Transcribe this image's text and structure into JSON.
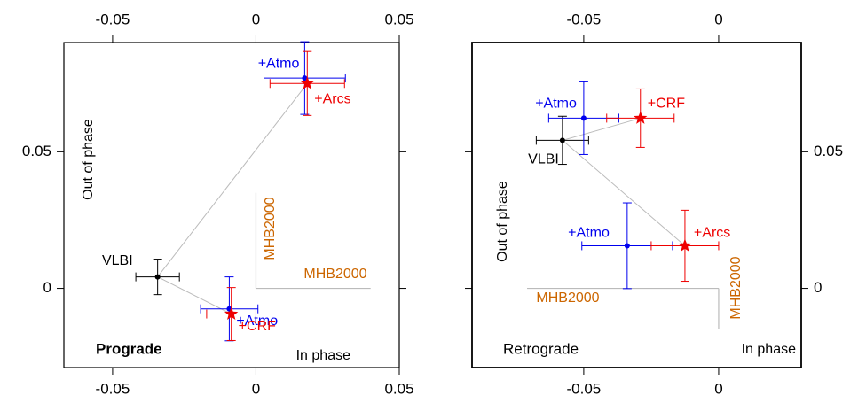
{
  "chart_data": [
    {
      "type": "scatter",
      "panel_label": "Prograde",
      "xlabel": "In phase",
      "ylabel": "Out of phase",
      "reference_label": "MHB2000",
      "xlim": [
        -0.067,
        0.05
      ],
      "ylim": [
        -0.029,
        0.09
      ],
      "xticks": [
        -0.05,
        0.0,
        0.05
      ],
      "yticks": [
        0.0,
        0.05
      ],
      "ytick_side": "left",
      "series": [
        {
          "name": "VLBI",
          "color": "#000000",
          "marker": "dot",
          "x": [
            -0.0343
          ],
          "values": [
            0.0042
          ],
          "xerr": [
            0.0076
          ],
          "yerr": [
            0.0065
          ]
        },
        {
          "name": "+Atmo",
          "color": "#0000ee",
          "marker": "dot",
          "x": [
            -0.0093
          ],
          "values": [
            -0.0075
          ],
          "xerr": [
            0.01
          ],
          "yerr": [
            0.0117
          ]
        },
        {
          "name": "+CRF",
          "color": "#ee0000",
          "marker": "star",
          "x": [
            -0.0086
          ],
          "values": [
            -0.0094
          ],
          "xerr": [
            0.0086
          ],
          "yerr": [
            0.0097
          ]
        },
        {
          "name": "+Atmo",
          "color": "#0000ee",
          "marker": "dot",
          "x": [
            0.017
          ],
          "values": [
            0.077
          ],
          "xerr": [
            0.0142
          ],
          "yerr": [
            0.0133
          ]
        },
        {
          "name": "+Arcs",
          "color": "#ee0000",
          "marker": "star",
          "x": [
            0.0179
          ],
          "values": [
            0.075
          ],
          "xerr": [
            0.013
          ],
          "yerr": [
            0.0117
          ]
        }
      ]
    },
    {
      "type": "scatter",
      "panel_label": "Retrograde",
      "xlabel": "In phase",
      "ylabel": "Out of phase",
      "reference_label": "MHB2000",
      "xlim": [
        -0.0914,
        0.0306
      ],
      "ylim": [
        -0.029,
        0.09
      ],
      "xticks": [
        -0.05,
        0.0
      ],
      "yticks": [
        0.0,
        0.05
      ],
      "ytick_side": "right",
      "series": [
        {
          "name": "VLBI",
          "color": "#000000",
          "marker": "dot",
          "x": [
            -0.0579
          ],
          "values": [
            0.0542
          ],
          "xerr": [
            0.0097
          ],
          "yerr": [
            0.0088
          ]
        },
        {
          "name": "+Atmo",
          "color": "#0000ee",
          "marker": "dot",
          "x": [
            -0.05
          ],
          "values": [
            0.0623
          ],
          "xerr": [
            0.013
          ],
          "yerr": [
            0.0133
          ]
        },
        {
          "name": "+CRF",
          "color": "#ee0000",
          "marker": "star",
          "x": [
            -0.029
          ],
          "values": [
            0.0623
          ],
          "xerr": [
            0.0125
          ],
          "yerr": [
            0.0107
          ]
        },
        {
          "name": "+Atmo",
          "color": "#0000ee",
          "marker": "dot",
          "x": [
            -0.0339
          ],
          "values": [
            0.0156
          ],
          "xerr": [
            0.0168
          ],
          "yerr": [
            0.0157
          ]
        },
        {
          "name": "+Arcs",
          "color": "#ee0000",
          "marker": "star",
          "x": [
            -0.0125
          ],
          "values": [
            0.0156
          ],
          "xerr": [
            0.0125
          ],
          "yerr": [
            0.013
          ]
        }
      ]
    }
  ]
}
